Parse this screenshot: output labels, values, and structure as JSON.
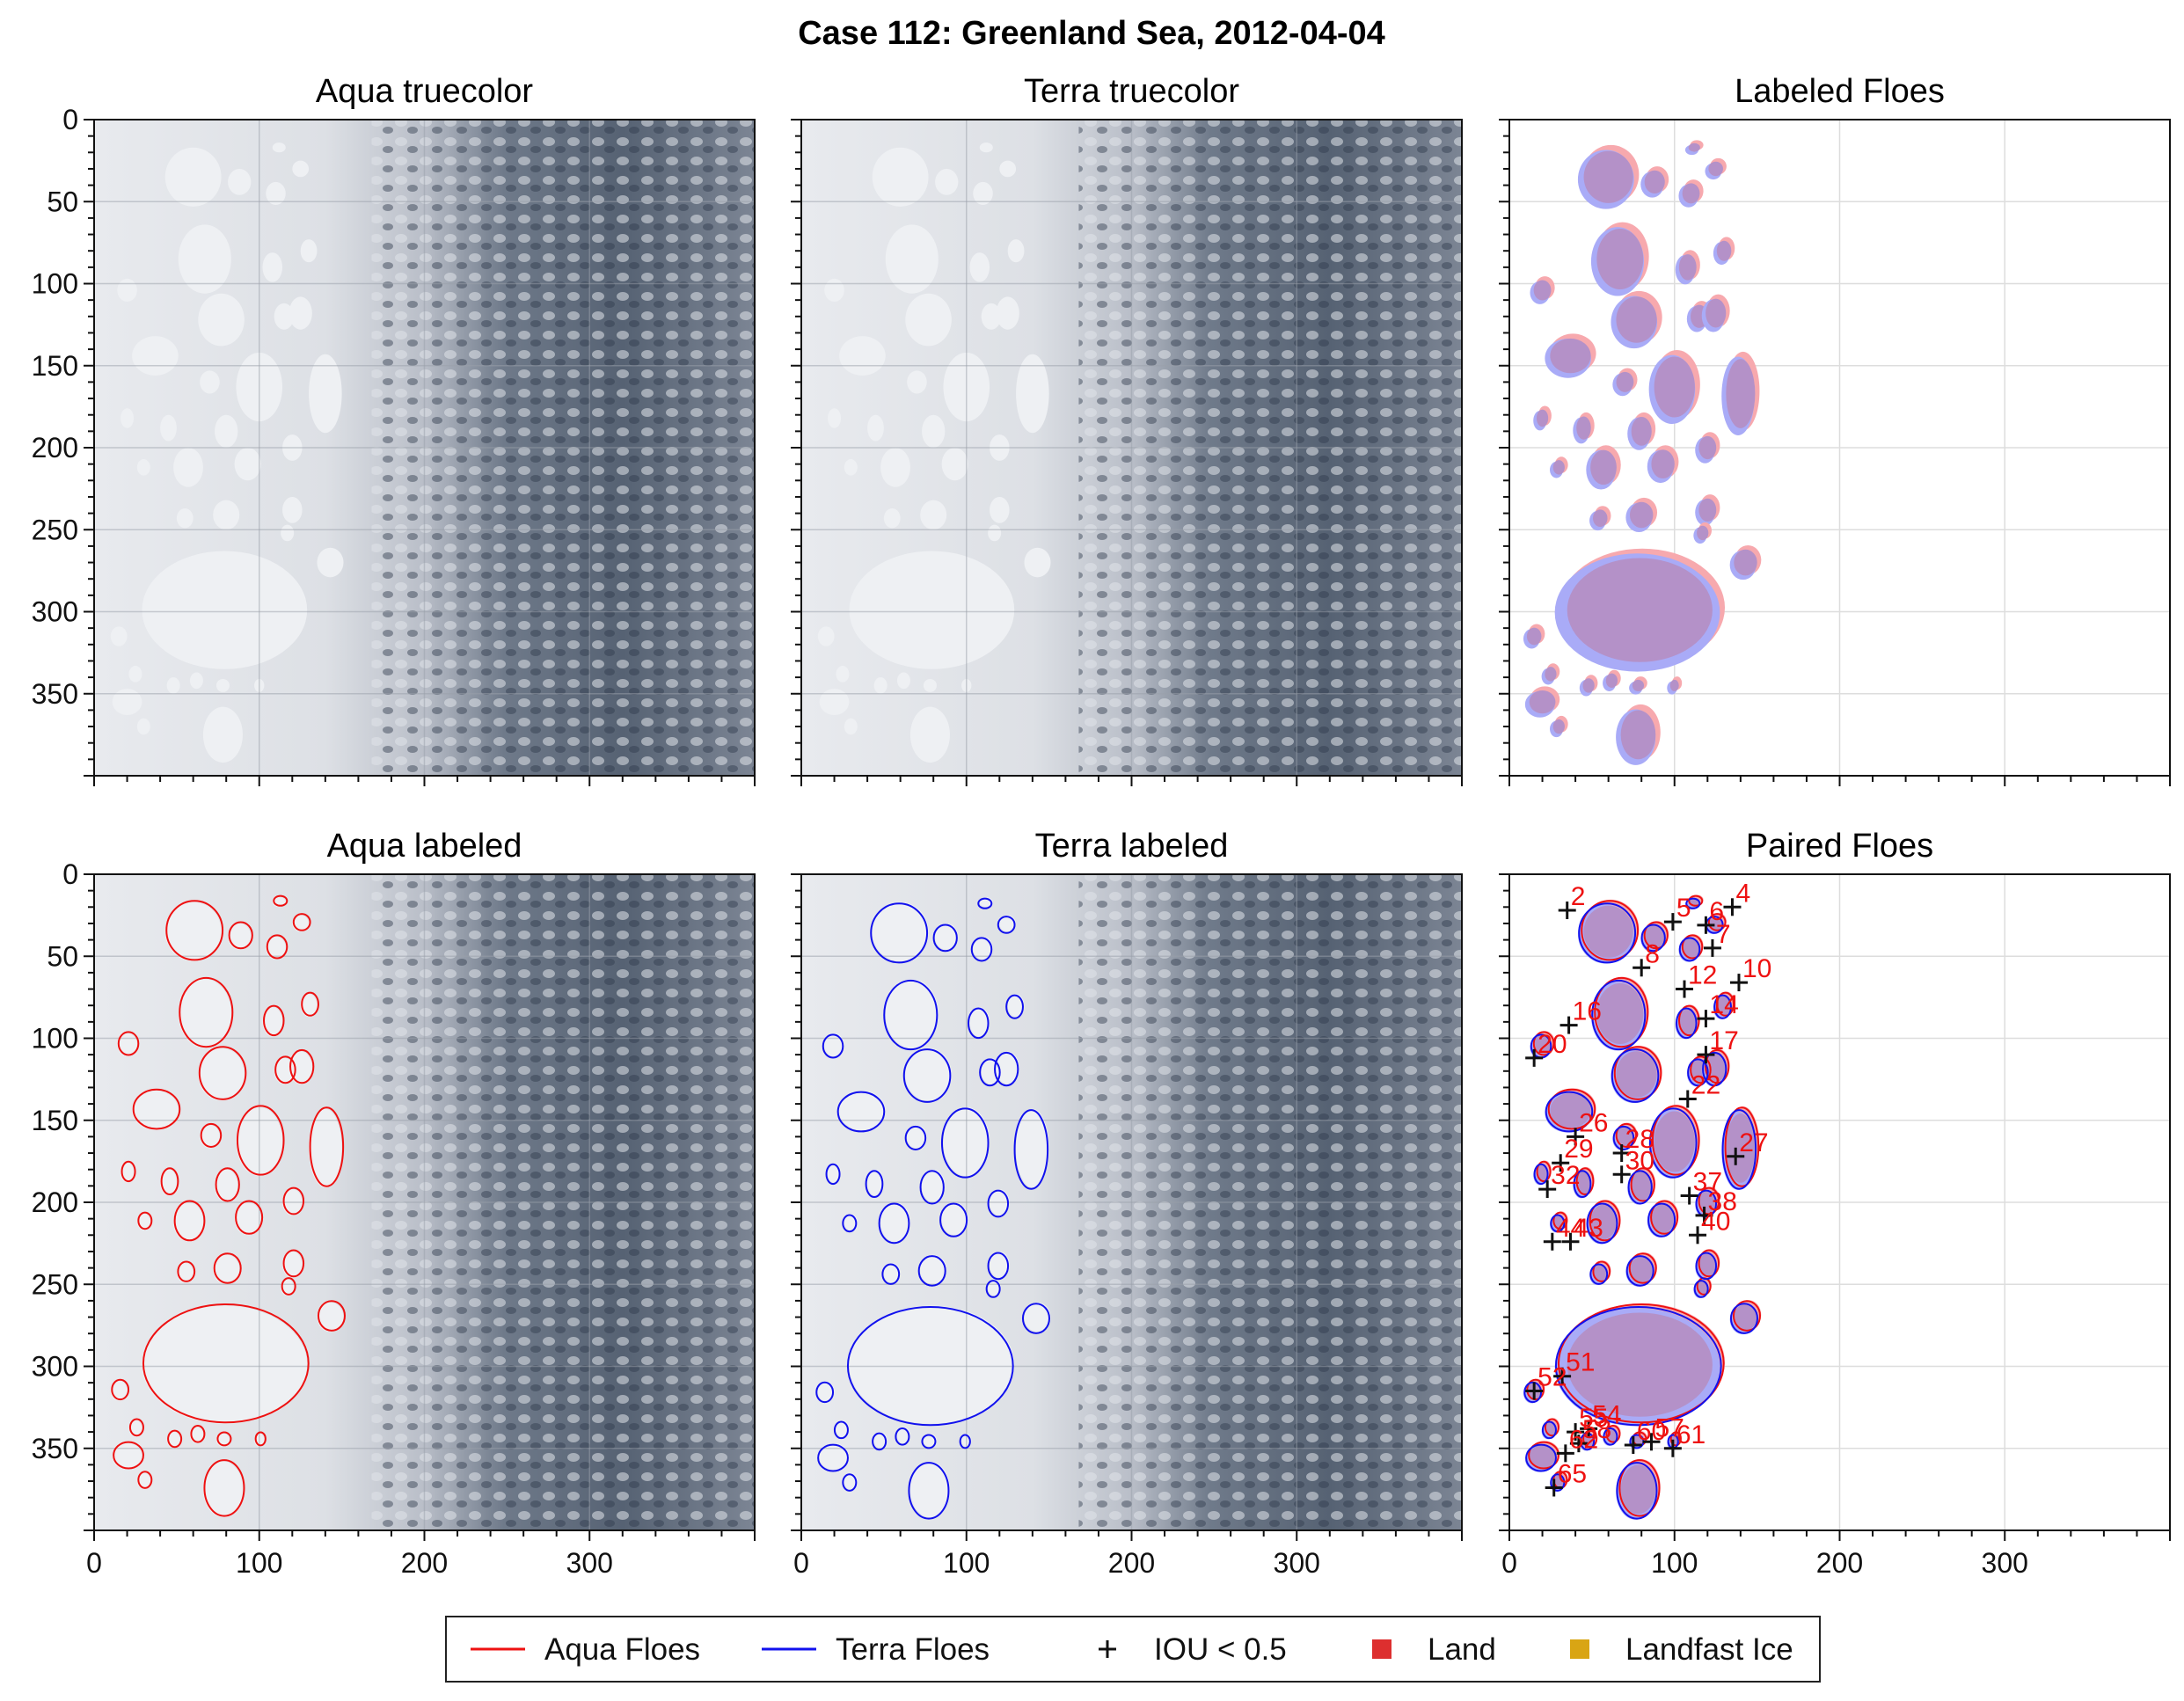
{
  "figure": {
    "title": "Case 112: Greenland Sea, 2012-04-04"
  },
  "colors": {
    "aqua": "#ee1111",
    "terra": "#1111ee",
    "aqua_fill": "#f7a9ae",
    "terra_fill": "#a9abf7",
    "overlap_fill": "#b491c8",
    "land": "#dd2f2f",
    "landfast": "#d9a514",
    "ice_bg": "#d4d7dc",
    "cloud_dark": "#4a5668"
  },
  "panels": [
    {
      "id": "aqua-truecolor",
      "title": "Aqua truecolor",
      "kind": "image"
    },
    {
      "id": "terra-truecolor",
      "title": "Terra truecolor",
      "kind": "image"
    },
    {
      "id": "labeled-floes",
      "title": "Labeled Floes",
      "kind": "mask"
    },
    {
      "id": "aqua-labeled",
      "title": "Aqua labeled",
      "kind": "image-outline-aqua"
    },
    {
      "id": "terra-labeled",
      "title": "Terra labeled",
      "kind": "image-outline-terra"
    },
    {
      "id": "paired-floes",
      "title": "Paired Floes",
      "kind": "paired"
    }
  ],
  "chart_data": {
    "type": "scatter",
    "xlim": [
      0,
      400
    ],
    "ylim": [
      0,
      400
    ],
    "y_inverted": true,
    "xticks": [
      0,
      100,
      200,
      300
    ],
    "yticks": [
      0,
      50,
      100,
      150,
      200,
      250,
      300,
      350
    ],
    "grid": true,
    "legend_position": "bottom-center",
    "legend": [
      {
        "label": "Aqua Floes",
        "marker": "line",
        "color": "#ee1111"
      },
      {
        "label": "Terra Floes",
        "marker": "line",
        "color": "#1111ee"
      },
      {
        "label": "IOU < 0.5",
        "marker": "plus",
        "color": "#111111"
      },
      {
        "label": "Land",
        "marker": "square",
        "color": "#dd2f2f"
      },
      {
        "label": "Landfast Ice",
        "marker": "square",
        "color": "#d9a514"
      }
    ],
    "floes": [
      {
        "x": 60,
        "y": 35,
        "rx": 17,
        "ry": 18
      },
      {
        "x": 88,
        "y": 38,
        "rx": 7,
        "ry": 8
      },
      {
        "x": 110,
        "y": 45,
        "rx": 6,
        "ry": 7
      },
      {
        "x": 125,
        "y": 30,
        "rx": 5,
        "ry": 5
      },
      {
        "x": 112,
        "y": 17,
        "rx": 4,
        "ry": 3
      },
      {
        "x": 67,
        "y": 85,
        "rx": 16,
        "ry": 21
      },
      {
        "x": 108,
        "y": 90,
        "rx": 6,
        "ry": 9
      },
      {
        "x": 130,
        "y": 80,
        "rx": 5,
        "ry": 7
      },
      {
        "x": 20,
        "y": 104,
        "rx": 6,
        "ry": 7
      },
      {
        "x": 77,
        "y": 122,
        "rx": 14,
        "ry": 16
      },
      {
        "x": 115,
        "y": 120,
        "rx": 6,
        "ry": 8
      },
      {
        "x": 125,
        "y": 118,
        "rx": 7,
        "ry": 10
      },
      {
        "x": 37,
        "y": 144,
        "rx": 14,
        "ry": 12
      },
      {
        "x": 100,
        "y": 163,
        "rx": 14,
        "ry": 21
      },
      {
        "x": 140,
        "y": 167,
        "rx": 10,
        "ry": 24
      },
      {
        "x": 70,
        "y": 160,
        "rx": 6,
        "ry": 7
      },
      {
        "x": 45,
        "y": 188,
        "rx": 5,
        "ry": 8
      },
      {
        "x": 80,
        "y": 190,
        "rx": 7,
        "ry": 10
      },
      {
        "x": 120,
        "y": 200,
        "rx": 6,
        "ry": 8
      },
      {
        "x": 57,
        "y": 212,
        "rx": 9,
        "ry": 12
      },
      {
        "x": 93,
        "y": 210,
        "rx": 8,
        "ry": 10
      },
      {
        "x": 20,
        "y": 182,
        "rx": 4,
        "ry": 6
      },
      {
        "x": 30,
        "y": 212,
        "rx": 4,
        "ry": 5
      },
      {
        "x": 120,
        "y": 238,
        "rx": 6,
        "ry": 8
      },
      {
        "x": 80,
        "y": 241,
        "rx": 8,
        "ry": 9
      },
      {
        "x": 55,
        "y": 243,
        "rx": 5,
        "ry": 6
      },
      {
        "x": 79,
        "y": 299,
        "rx": 50,
        "ry": 36
      },
      {
        "x": 117,
        "y": 252,
        "rx": 4,
        "ry": 5
      },
      {
        "x": 143,
        "y": 270,
        "rx": 8,
        "ry": 9
      },
      {
        "x": 15,
        "y": 315,
        "rx": 5,
        "ry": 6
      },
      {
        "x": 25,
        "y": 338,
        "rx": 4,
        "ry": 5
      },
      {
        "x": 48,
        "y": 345,
        "rx": 4,
        "ry": 5
      },
      {
        "x": 62,
        "y": 342,
        "rx": 4,
        "ry": 5
      },
      {
        "x": 78,
        "y": 345,
        "rx": 4,
        "ry": 4
      },
      {
        "x": 100,
        "y": 345,
        "rx": 3,
        "ry": 4
      },
      {
        "x": 20,
        "y": 355,
        "rx": 9,
        "ry": 8
      },
      {
        "x": 78,
        "y": 375,
        "rx": 12,
        "ry": 17
      },
      {
        "x": 30,
        "y": 370,
        "rx": 4,
        "ry": 5
      }
    ],
    "mismatches": [
      {
        "id": 2,
        "x": 35,
        "y": 22
      },
      {
        "id": 4,
        "x": 135,
        "y": 20
      },
      {
        "id": 5,
        "x": 99,
        "y": 29
      },
      {
        "id": 6,
        "x": 119,
        "y": 31
      },
      {
        "id": 7,
        "x": 123,
        "y": 45
      },
      {
        "id": 8,
        "x": 80,
        "y": 57
      },
      {
        "id": 10,
        "x": 139,
        "y": 66
      },
      {
        "id": 12,
        "x": 106,
        "y": 70
      },
      {
        "id": 14,
        "x": 119,
        "y": 88
      },
      {
        "id": 16,
        "x": 36,
        "y": 92
      },
      {
        "id": 17,
        "x": 119,
        "y": 110
      },
      {
        "id": 20,
        "x": 15,
        "y": 112
      },
      {
        "id": 22,
        "x": 108,
        "y": 137
      },
      {
        "id": 26,
        "x": 40,
        "y": 160
      },
      {
        "id": 27,
        "x": 137,
        "y": 172
      },
      {
        "id": 28,
        "x": 68,
        "y": 170
      },
      {
        "id": 29,
        "x": 31,
        "y": 176
      },
      {
        "id": 30,
        "x": 68,
        "y": 183
      },
      {
        "id": 32,
        "x": 23,
        "y": 192
      },
      {
        "id": 37,
        "x": 109,
        "y": 196
      },
      {
        "id": 38,
        "x": 118,
        "y": 208
      },
      {
        "id": 40,
        "x": 114,
        "y": 220
      },
      {
        "id": 43,
        "x": 37,
        "y": 224
      },
      {
        "id": 44,
        "x": 26,
        "y": 224
      },
      {
        "id": 51,
        "x": 32,
        "y": 306
      },
      {
        "id": 52,
        "x": 15,
        "y": 315
      },
      {
        "id": 54,
        "x": 48,
        "y": 338
      },
      {
        "id": 55,
        "x": 40,
        "y": 340
      },
      {
        "id": 57,
        "x": 86,
        "y": 346
      },
      {
        "id": 58,
        "x": 42,
        "y": 347
      },
      {
        "id": 60,
        "x": 75,
        "y": 348
      },
      {
        "id": 61,
        "x": 99,
        "y": 350
      },
      {
        "id": 62,
        "x": 34,
        "y": 353
      },
      {
        "id": 65,
        "x": 27,
        "y": 374
      }
    ]
  }
}
